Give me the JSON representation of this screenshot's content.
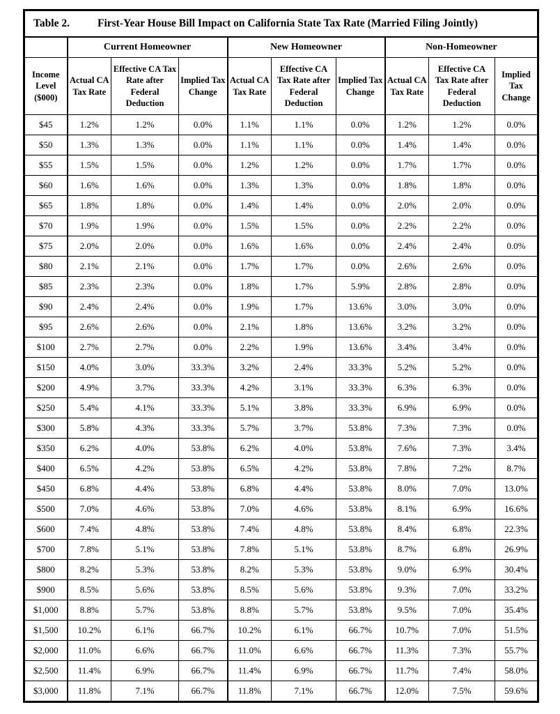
{
  "title": {
    "label": "Table 2.",
    "text": "First-Year House Bill Impact on California State Tax Rate (Married Filing Jointly)"
  },
  "groups": [
    "Current Homeowner",
    "New Homeowner",
    "Non-Homeowner"
  ],
  "headers": {
    "income": "Income Level ($000)",
    "actual": "Actual CA Tax Rate",
    "effective": "Effective CA Tax Rate after Federal Deduction",
    "implied": "Implied Tax Change"
  },
  "chart_data": {
    "type": "table",
    "title": "First-Year House Bill Impact on California State Tax Rate (Married Filing Jointly)",
    "column_groups": [
      "Current Homeowner",
      "New Homeowner",
      "Non-Homeowner"
    ],
    "columns_per_group": [
      "Actual CA Tax Rate",
      "Effective CA Tax Rate after Federal Deduction",
      "Implied Tax Change"
    ],
    "row_header": "Income Level ($000)"
  },
  "table": {
    "rows": [
      [
        "$45",
        "1.2%",
        "1.2%",
        "0.0%",
        "1.1%",
        "1.1%",
        "0.0%",
        "1.2%",
        "1.2%",
        "0.0%"
      ],
      [
        "$50",
        "1.3%",
        "1.3%",
        "0.0%",
        "1.1%",
        "1.1%",
        "0.0%",
        "1.4%",
        "1.4%",
        "0.0%"
      ],
      [
        "$55",
        "1.5%",
        "1.5%",
        "0.0%",
        "1.2%",
        "1.2%",
        "0.0%",
        "1.7%",
        "1.7%",
        "0.0%"
      ],
      [
        "$60",
        "1.6%",
        "1.6%",
        "0.0%",
        "1.3%",
        "1.3%",
        "0.0%",
        "1.8%",
        "1.8%",
        "0.0%"
      ],
      [
        "$65",
        "1.8%",
        "1.8%",
        "0.0%",
        "1.4%",
        "1.4%",
        "0.0%",
        "2.0%",
        "2.0%",
        "0.0%"
      ],
      [
        "$70",
        "1.9%",
        "1.9%",
        "0.0%",
        "1.5%",
        "1.5%",
        "0.0%",
        "2.2%",
        "2.2%",
        "0.0%"
      ],
      [
        "$75",
        "2.0%",
        "2.0%",
        "0.0%",
        "1.6%",
        "1.6%",
        "0.0%",
        "2.4%",
        "2.4%",
        "0.0%"
      ],
      [
        "$80",
        "2.1%",
        "2.1%",
        "0.0%",
        "1.7%",
        "1.7%",
        "0.0%",
        "2.6%",
        "2.6%",
        "0.0%"
      ],
      [
        "$85",
        "2.3%",
        "2.3%",
        "0.0%",
        "1.8%",
        "1.7%",
        "5.9%",
        "2.8%",
        "2.8%",
        "0.0%"
      ],
      [
        "$90",
        "2.4%",
        "2.4%",
        "0.0%",
        "1.9%",
        "1.7%",
        "13.6%",
        "3.0%",
        "3.0%",
        "0.0%"
      ],
      [
        "$95",
        "2.6%",
        "2.6%",
        "0.0%",
        "2.1%",
        "1.8%",
        "13.6%",
        "3.2%",
        "3.2%",
        "0.0%"
      ],
      [
        "$100",
        "2.7%",
        "2.7%",
        "0.0%",
        "2.2%",
        "1.9%",
        "13.6%",
        "3.4%",
        "3.4%",
        "0.0%"
      ],
      [
        "$150",
        "4.0%",
        "3.0%",
        "33.3%",
        "3.2%",
        "2.4%",
        "33.3%",
        "5.2%",
        "5.2%",
        "0.0%"
      ],
      [
        "$200",
        "4.9%",
        "3.7%",
        "33.3%",
        "4.2%",
        "3.1%",
        "33.3%",
        "6.3%",
        "6.3%",
        "0.0%"
      ],
      [
        "$250",
        "5.4%",
        "4.1%",
        "33.3%",
        "5.1%",
        "3.8%",
        "33.3%",
        "6.9%",
        "6.9%",
        "0.0%"
      ],
      [
        "$300",
        "5.8%",
        "4.3%",
        "33.3%",
        "5.7%",
        "3.7%",
        "53.8%",
        "7.3%",
        "7.3%",
        "0.0%"
      ],
      [
        "$350",
        "6.2%",
        "4.0%",
        "53.8%",
        "6.2%",
        "4.0%",
        "53.8%",
        "7.6%",
        "7.3%",
        "3.4%"
      ],
      [
        "$400",
        "6.5%",
        "4.2%",
        "53.8%",
        "6.5%",
        "4.2%",
        "53.8%",
        "7.8%",
        "7.2%",
        "8.7%"
      ],
      [
        "$450",
        "6.8%",
        "4.4%",
        "53.8%",
        "6.8%",
        "4.4%",
        "53.8%",
        "8.0%",
        "7.0%",
        "13.0%"
      ],
      [
        "$500",
        "7.0%",
        "4.6%",
        "53.8%",
        "7.0%",
        "4.6%",
        "53.8%",
        "8.1%",
        "6.9%",
        "16.6%"
      ],
      [
        "$600",
        "7.4%",
        "4.8%",
        "53.8%",
        "7.4%",
        "4.8%",
        "53.8%",
        "8.4%",
        "6.8%",
        "22.3%"
      ],
      [
        "$700",
        "7.8%",
        "5.1%",
        "53.8%",
        "7.8%",
        "5.1%",
        "53.8%",
        "8.7%",
        "6.8%",
        "26.9%"
      ],
      [
        "$800",
        "8.2%",
        "5.3%",
        "53.8%",
        "8.2%",
        "5.3%",
        "53.8%",
        "9.0%",
        "6.9%",
        "30.4%"
      ],
      [
        "$900",
        "8.5%",
        "5.6%",
        "53.8%",
        "8.5%",
        "5.6%",
        "53.8%",
        "9.3%",
        "7.0%",
        "33.2%"
      ],
      [
        "$1,000",
        "8.8%",
        "5.7%",
        "53.8%",
        "8.8%",
        "5.7%",
        "53.8%",
        "9.5%",
        "7.0%",
        "35.4%"
      ],
      [
        "$1,500",
        "10.2%",
        "6.1%",
        "66.7%",
        "10.2%",
        "6.1%",
        "66.7%",
        "10.7%",
        "7.0%",
        "51.5%"
      ],
      [
        "$2,000",
        "11.0%",
        "6.6%",
        "66.7%",
        "11.0%",
        "6.6%",
        "66.7%",
        "11.3%",
        "7.3%",
        "55.7%"
      ],
      [
        "$2,500",
        "11.4%",
        "6.9%",
        "66.7%",
        "11.4%",
        "6.9%",
        "66.7%",
        "11.7%",
        "7.4%",
        "58.0%"
      ],
      [
        "$3,000",
        "11.8%",
        "7.1%",
        "66.7%",
        "11.8%",
        "7.1%",
        "66.7%",
        "12.0%",
        "7.5%",
        "59.6%"
      ]
    ]
  }
}
